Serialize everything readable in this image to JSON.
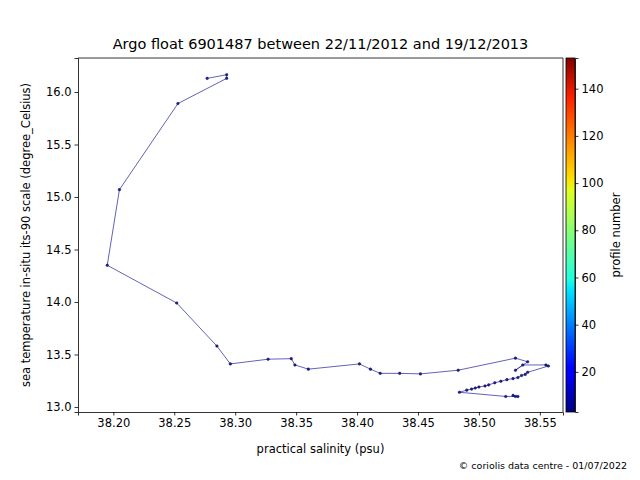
{
  "chart_data": {
    "type": "line",
    "title": "Argo float 6901487 between 22/11/2012 and 19/12/2013",
    "x_label": "practical salinity (psu)",
    "y_label": "sea temperature in-situ its-90 scale (degree_Celsius)",
    "annotations": [
      "© coriolis data centre - 01/07/2022"
    ],
    "x": [
      38.277,
      38.293,
      38.293,
      38.253,
      38.205,
      38.195,
      38.252,
      38.285,
      38.296,
      38.327,
      38.346,
      38.349,
      38.36,
      38.402,
      38.411,
      38.419,
      38.435,
      38.452,
      38.483,
      38.53,
      38.54,
      38.53,
      38.536,
      38.555,
      38.557,
      38.54,
      38.538,
      38.535,
      38.532,
      38.528,
      38.523,
      38.518,
      38.513,
      38.508,
      38.505,
      38.5,
      38.497,
      38.494,
      38.49,
      38.484,
      38.522,
      38.53,
      38.532,
      38.528
    ],
    "series": [
      {
        "color": "#1f1f9a",
        "marker": "circle",
        "values": [
          16.13,
          16.165,
          16.13,
          15.89,
          15.07,
          14.35,
          13.99,
          13.58,
          13.41,
          13.455,
          13.46,
          13.4,
          13.36,
          13.41,
          13.36,
          13.32,
          13.32,
          13.315,
          13.35,
          13.465,
          13.43,
          13.35,
          13.4,
          13.4,
          13.39,
          13.33,
          13.31,
          13.3,
          13.28,
          13.27,
          13.26,
          13.245,
          13.23,
          13.21,
          13.2,
          13.19,
          13.18,
          13.17,
          13.16,
          13.14,
          13.1,
          13.1,
          13.1,
          13.11
        ]
      }
    ],
    "xlim": [
      38.171,
      38.569
    ],
    "ylim": [
      12.952,
      16.324
    ],
    "xticks": [
      {
        "value": 38.2,
        "label": "38.20"
      },
      38.25,
      {
        "value": 38.3,
        "label": "38.30"
      },
      38.35,
      {
        "value": 38.4,
        "label": "38.40"
      },
      38.45,
      {
        "value": 38.5,
        "label": "38.50"
      },
      38.55
    ],
    "yticks": [
      {
        "value": 13,
        "label": "13.0"
      },
      13.5,
      {
        "value": 14,
        "label": "14.0"
      },
      14.5,
      {
        "value": 15,
        "label": "15.0"
      },
      15.5,
      {
        "value": 16,
        "label": "16.0"
      }
    ],
    "grid": false,
    "colorbar": {
      "label": "profile number",
      "lim": [
        3,
        153
      ],
      "ticks": [
        20,
        40,
        60,
        80,
        100,
        120,
        140
      ]
    }
  }
}
